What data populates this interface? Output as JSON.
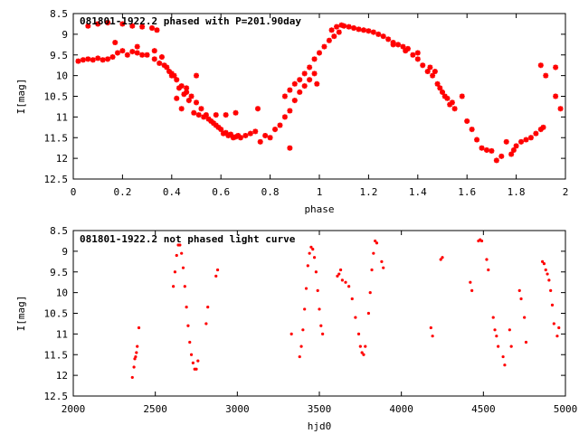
{
  "chart_data": [
    {
      "type": "scatter",
      "title": "081801-1922.2 phased with P=201.90day",
      "xlabel": "phase",
      "ylabel": "I[mag]",
      "xlim": [
        0,
        2
      ],
      "ylim": [
        12.5,
        8.5
      ],
      "y_inverted": true,
      "xticks": [
        "0",
        "0.2",
        "0.4",
        "0.6",
        "0.8",
        "1",
        "1.2",
        "1.4",
        "1.6",
        "1.8",
        "2"
      ],
      "yticks": [
        "8.5",
        "9",
        "9.5",
        "10",
        "10.5",
        "11",
        "11.5",
        "12",
        "12.5"
      ],
      "marker": "star",
      "color": "#ff0000",
      "grid": false,
      "points": [
        [
          0.02,
          9.65
        ],
        [
          0.04,
          9.62
        ],
        [
          0.06,
          9.6
        ],
        [
          0.08,
          9.62
        ],
        [
          0.1,
          9.58
        ],
        [
          0.12,
          9.62
        ],
        [
          0.14,
          9.6
        ],
        [
          0.16,
          9.55
        ],
        [
          0.18,
          9.45
        ],
        [
          0.2,
          9.4
        ],
        [
          0.22,
          9.5
        ],
        [
          0.24,
          9.42
        ],
        [
          0.26,
          9.45
        ],
        [
          0.28,
          9.5
        ],
        [
          0.3,
          9.5
        ],
        [
          0.06,
          8.8
        ],
        [
          0.1,
          8.75
        ],
        [
          0.14,
          8.72
        ],
        [
          0.2,
          8.75
        ],
        [
          0.24,
          8.8
        ],
        [
          0.28,
          8.82
        ],
        [
          0.32,
          8.85
        ],
        [
          0.34,
          8.9
        ],
        [
          0.17,
          9.2
        ],
        [
          0.26,
          9.3
        ],
        [
          0.33,
          9.4
        ],
        [
          0.36,
          9.55
        ],
        [
          0.38,
          9.8
        ],
        [
          0.4,
          9.95
        ],
        [
          0.42,
          10.1
        ],
        [
          0.44,
          10.25
        ],
        [
          0.46,
          10.4
        ],
        [
          0.48,
          10.5
        ],
        [
          0.5,
          10.65
        ],
        [
          0.52,
          10.8
        ],
        [
          0.54,
          10.95
        ],
        [
          0.56,
          11.1
        ],
        [
          0.58,
          11.2
        ],
        [
          0.6,
          11.3
        ],
        [
          0.62,
          11.38
        ],
        [
          0.64,
          11.42
        ],
        [
          0.66,
          11.48
        ],
        [
          0.68,
          11.5
        ],
        [
          0.7,
          11.45
        ],
        [
          0.72,
          11.4
        ],
        [
          0.74,
          11.35
        ],
        [
          0.33,
          9.6
        ],
        [
          0.35,
          9.7
        ],
        [
          0.37,
          9.75
        ],
        [
          0.39,
          9.9
        ],
        [
          0.41,
          10.0
        ],
        [
          0.43,
          10.3
        ],
        [
          0.45,
          10.45
        ],
        [
          0.47,
          10.6
        ],
        [
          0.49,
          10.9
        ],
        [
          0.51,
          10.95
        ],
        [
          0.53,
          11.0
        ],
        [
          0.55,
          11.05
        ],
        [
          0.57,
          11.15
        ],
        [
          0.59,
          11.25
        ],
        [
          0.61,
          11.4
        ],
        [
          0.63,
          11.45
        ],
        [
          0.65,
          11.5
        ],
        [
          0.67,
          11.45
        ],
        [
          0.4,
          10.0
        ],
        [
          0.42,
          10.55
        ],
        [
          0.44,
          10.8
        ],
        [
          0.46,
          10.3
        ],
        [
          0.5,
          10.0
        ],
        [
          0.58,
          10.95
        ],
        [
          0.62,
          10.95
        ],
        [
          0.66,
          10.9
        ],
        [
          0.75,
          10.8
        ],
        [
          0.78,
          11.45
        ],
        [
          0.8,
          11.5
        ],
        [
          0.82,
          11.3
        ],
        [
          0.84,
          11.2
        ],
        [
          0.86,
          11.0
        ],
        [
          0.88,
          10.85
        ],
        [
          0.9,
          10.6
        ],
        [
          0.92,
          10.4
        ],
        [
          0.94,
          10.25
        ],
        [
          0.96,
          10.1
        ],
        [
          0.98,
          9.95
        ],
        [
          0.76,
          11.6
        ],
        [
          0.88,
          11.75
        ],
        [
          0.86,
          10.5
        ],
        [
          0.88,
          10.35
        ],
        [
          0.9,
          10.2
        ],
        [
          0.92,
          10.1
        ],
        [
          0.94,
          9.95
        ],
        [
          0.96,
          9.8
        ],
        [
          0.98,
          9.6
        ],
        [
          0.99,
          10.2
        ],
        [
          1.0,
          9.45
        ],
        [
          1.02,
          9.3
        ],
        [
          1.04,
          9.15
        ],
        [
          1.06,
          9.05
        ],
        [
          1.08,
          8.95
        ],
        [
          1.05,
          8.9
        ],
        [
          1.07,
          8.82
        ],
        [
          1.09,
          8.78
        ],
        [
          1.1,
          8.8
        ],
        [
          1.12,
          8.82
        ],
        [
          1.14,
          8.85
        ],
        [
          1.16,
          8.88
        ],
        [
          1.18,
          8.9
        ],
        [
          1.2,
          8.92
        ],
        [
          1.22,
          8.95
        ],
        [
          1.24,
          9.0
        ],
        [
          1.26,
          9.05
        ],
        [
          1.28,
          9.12
        ],
        [
          1.3,
          9.2
        ],
        [
          1.32,
          9.25
        ],
        [
          1.34,
          9.3
        ],
        [
          1.36,
          9.35
        ],
        [
          1.38,
          9.5
        ],
        [
          1.4,
          9.6
        ],
        [
          1.42,
          9.75
        ],
        [
          1.44,
          9.9
        ],
        [
          1.46,
          10.0
        ],
        [
          1.48,
          10.2
        ],
        [
          1.5,
          10.4
        ],
        [
          1.52,
          10.55
        ],
        [
          1.54,
          10.65
        ],
        [
          1.3,
          9.25
        ],
        [
          1.35,
          9.4
        ],
        [
          1.4,
          9.45
        ],
        [
          1.45,
          9.8
        ],
        [
          1.47,
          9.9
        ],
        [
          1.49,
          10.3
        ],
        [
          1.51,
          10.5
        ],
        [
          1.53,
          10.7
        ],
        [
          1.55,
          10.8
        ],
        [
          1.58,
          10.5
        ],
        [
          1.6,
          11.1
        ],
        [
          1.62,
          11.3
        ],
        [
          1.64,
          11.55
        ],
        [
          1.66,
          11.75
        ],
        [
          1.68,
          11.8
        ],
        [
          1.7,
          11.82
        ],
        [
          1.72,
          12.05
        ],
        [
          1.74,
          11.95
        ],
        [
          1.76,
          11.6
        ],
        [
          1.78,
          11.9
        ],
        [
          1.79,
          11.8
        ],
        [
          1.8,
          11.7
        ],
        [
          1.82,
          11.6
        ],
        [
          1.84,
          11.55
        ],
        [
          1.86,
          11.5
        ],
        [
          1.88,
          11.4
        ],
        [
          1.9,
          11.3
        ],
        [
          1.91,
          11.25
        ],
        [
          1.9,
          9.75
        ],
        [
          1.92,
          10.0
        ],
        [
          1.96,
          9.8
        ],
        [
          1.96,
          10.5
        ],
        [
          1.98,
          10.8
        ]
      ]
    },
    {
      "type": "scatter",
      "title": "081801-1922.2 not phased light curve",
      "xlabel": "hjd0",
      "ylabel": "I[mag]",
      "xlim": [
        2000,
        5000
      ],
      "ylim": [
        12.5,
        8.5
      ],
      "y_inverted": true,
      "xticks": [
        "2000",
        "2500",
        "3000",
        "3500",
        "4000",
        "4500",
        "5000"
      ],
      "yticks": [
        "8.5",
        "9",
        "9.5",
        "10",
        "10.5",
        "11",
        "11.5",
        "12",
        "12.5"
      ],
      "marker": "dot",
      "color": "#ff0000",
      "grid": false,
      "points": [
        [
          2360,
          12.05
        ],
        [
          2370,
          11.8
        ],
        [
          2375,
          11.6
        ],
        [
          2380,
          11.55
        ],
        [
          2385,
          11.45
        ],
        [
          2390,
          11.3
        ],
        [
          2400,
          10.85
        ],
        [
          2610,
          9.85
        ],
        [
          2620,
          9.5
        ],
        [
          2630,
          9.1
        ],
        [
          2640,
          8.85
        ],
        [
          2650,
          8.85
        ],
        [
          2660,
          9.05
        ],
        [
          2670,
          9.4
        ],
        [
          2680,
          9.85
        ],
        [
          2690,
          10.35
        ],
        [
          2700,
          10.8
        ],
        [
          2710,
          11.2
        ],
        [
          2720,
          11.5
        ],
        [
          2730,
          11.7
        ],
        [
          2740,
          11.85
        ],
        [
          2750,
          11.85
        ],
        [
          2760,
          11.65
        ],
        [
          2810,
          10.75
        ],
        [
          2820,
          10.35
        ],
        [
          2870,
          9.6
        ],
        [
          2880,
          9.45
        ],
        [
          3330,
          11.0
        ],
        [
          3380,
          11.55
        ],
        [
          3390,
          11.3
        ],
        [
          3400,
          10.9
        ],
        [
          3410,
          10.4
        ],
        [
          3420,
          9.9
        ],
        [
          3430,
          9.35
        ],
        [
          3440,
          9.05
        ],
        [
          3450,
          8.9
        ],
        [
          3460,
          8.95
        ],
        [
          3470,
          9.15
        ],
        [
          3480,
          9.5
        ],
        [
          3490,
          9.95
        ],
        [
          3500,
          10.4
        ],
        [
          3510,
          10.8
        ],
        [
          3520,
          11.0
        ],
        [
          3610,
          9.6
        ],
        [
          3620,
          9.55
        ],
        [
          3630,
          9.45
        ],
        [
          3640,
          9.7
        ],
        [
          3660,
          9.75
        ],
        [
          3680,
          9.85
        ],
        [
          3700,
          10.15
        ],
        [
          3720,
          10.6
        ],
        [
          3740,
          11.0
        ],
        [
          3750,
          11.3
        ],
        [
          3760,
          11.45
        ],
        [
          3770,
          11.5
        ],
        [
          3780,
          11.3
        ],
        [
          3800,
          10.5
        ],
        [
          3810,
          10.0
        ],
        [
          3820,
          9.45
        ],
        [
          3830,
          9.05
        ],
        [
          3840,
          8.75
        ],
        [
          3850,
          8.8
        ],
        [
          3880,
          9.25
        ],
        [
          3890,
          9.4
        ],
        [
          4180,
          10.85
        ],
        [
          4190,
          11.05
        ],
        [
          4240,
          9.2
        ],
        [
          4250,
          9.15
        ],
        [
          4420,
          9.75
        ],
        [
          4430,
          9.95
        ],
        [
          4470,
          8.75
        ],
        [
          4480,
          8.72
        ],
        [
          4490,
          8.75
        ],
        [
          4520,
          9.2
        ],
        [
          4530,
          9.45
        ],
        [
          4560,
          10.6
        ],
        [
          4570,
          10.9
        ],
        [
          4580,
          11.05
        ],
        [
          4590,
          11.3
        ],
        [
          4620,
          11.55
        ],
        [
          4630,
          11.75
        ],
        [
          4660,
          10.9
        ],
        [
          4670,
          11.3
        ],
        [
          4720,
          9.95
        ],
        [
          4730,
          10.15
        ],
        [
          4750,
          10.6
        ],
        [
          4760,
          11.2
        ],
        [
          4860,
          9.25
        ],
        [
          4870,
          9.3
        ],
        [
          4880,
          9.45
        ],
        [
          4890,
          9.55
        ],
        [
          4900,
          9.7
        ],
        [
          4910,
          9.95
        ],
        [
          4920,
          10.3
        ],
        [
          4930,
          10.75
        ],
        [
          4950,
          11.05
        ],
        [
          4960,
          10.85
        ]
      ]
    }
  ]
}
